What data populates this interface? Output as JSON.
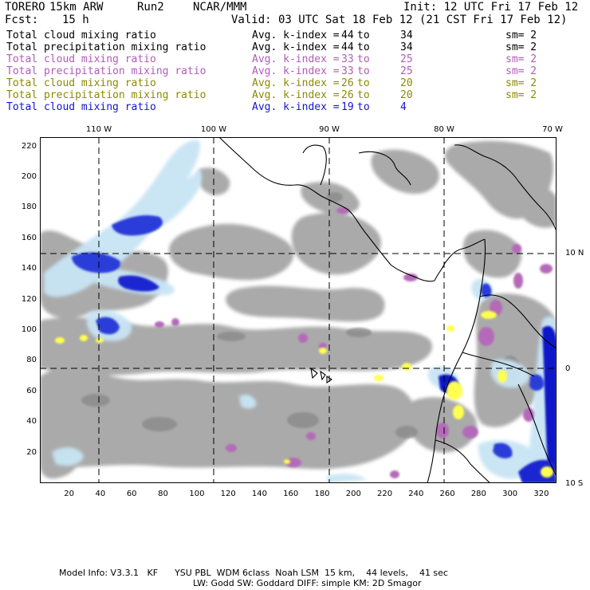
{
  "header": {
    "model": "TORERO",
    "resolution": "15km ARW",
    "run": "Run2",
    "org": "NCAR/MMM",
    "init": "Init: 12 UTC Fri 17 Feb 12",
    "fcst_label": "Fcst:",
    "fcst_value": "15 h",
    "valid": "Valid: 03 UTC Sat 18 Feb 12 (21 CST Fri 17 Feb 12)"
  },
  "legend": [
    {
      "field": "Total cloud mixing ratio",
      "kindex": "Avg. k-index =",
      "from": "44",
      "to": "to",
      "to_val": "34",
      "sm": "sm= 2",
      "color": "#000000"
    },
    {
      "field": "Total precipitation mixing ratio",
      "kindex": "Avg. k-index =",
      "from": "44",
      "to": "to",
      "to_val": "34",
      "sm": "sm= 2",
      "color": "#000000"
    },
    {
      "field": "Total cloud mixing ratio",
      "kindex": "Avg. k-index =",
      "from": "33",
      "to": "to",
      "to_val": "25",
      "sm": "sm= 2",
      "color": "#b05cb8"
    },
    {
      "field": "Total precipitation mixing ratio",
      "kindex": "Avg. k-index =",
      "from": "33",
      "to": "to",
      "to_val": "25",
      "sm": "sm= 2",
      "color": "#b05cb8"
    },
    {
      "field": "Total cloud mixing ratio",
      "kindex": "Avg. k-index =",
      "from": "26",
      "to": "to",
      "to_val": "20",
      "sm": "sm= 2",
      "color": "#8c8a00"
    },
    {
      "field": "Total precipitation mixing ratio",
      "kindex": "Avg. k-index =",
      "from": "26",
      "to": "to",
      "to_val": "20",
      "sm": "sm= 2",
      "color": "#8c8a00"
    },
    {
      "field": "Total cloud mixing ratio",
      "kindex": "Avg. k-index =",
      "from": "19",
      "to": "to",
      "to_val": "4",
      "sm": "",
      "color": "#1414d2"
    }
  ],
  "map": {
    "lon_labels": [
      "110 W",
      "100 W",
      "90 W",
      "80 W",
      "70 W"
    ],
    "lat_labels": [
      "10 N",
      "0",
      "10 S"
    ],
    "x_ticks": [
      "20",
      "40",
      "60",
      "80",
      "100",
      "120",
      "140",
      "160",
      "180",
      "200",
      "220",
      "240",
      "260",
      "280",
      "300",
      "320"
    ],
    "y_ticks": [
      "220",
      "200",
      "180",
      "160",
      "140",
      "120",
      "100",
      "80",
      "60",
      "40",
      "20"
    ],
    "colors": {
      "cloud_gray": "#a6a6a6",
      "cloud_gray_dark": "#8a8a8a",
      "precip_light_blue": "#c8e4f4",
      "precip_blue": "#2a3cd8",
      "precip_dark_blue": "#0a14c8",
      "purple": "#b46ab8",
      "yellow": "#ffff50",
      "coast": "#000000",
      "grid": "#000000"
    }
  },
  "footer": {
    "line1": "Model Info: V3.3.1   KF      YSU PBL  WDM 6class  Noah LSM  15 km,    44 levels,    41 sec",
    "line2": "LW: Godd SW: Goddard DIFF: simple KM: 2D Smagor"
  }
}
